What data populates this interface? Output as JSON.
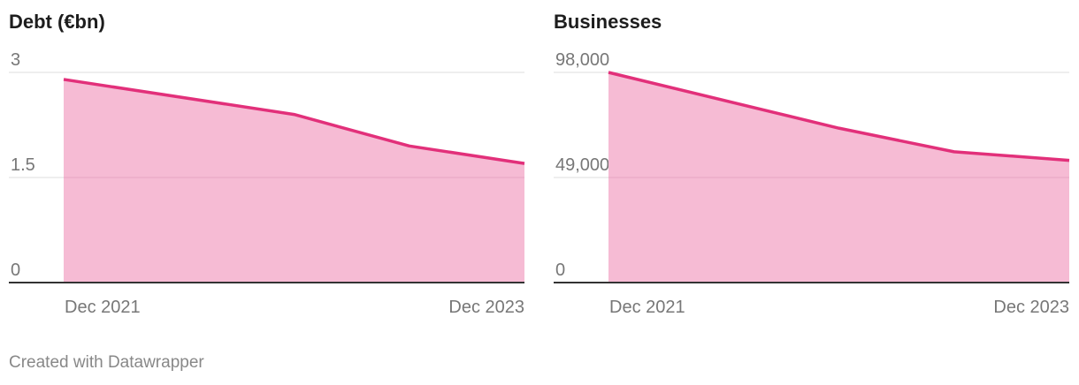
{
  "footer": {
    "credit": "Created with Datawrapper"
  },
  "colors": {
    "line": "#e2307a",
    "area": "#f6bbd4",
    "grid": "#dedede",
    "baseline": "#333333",
    "tick_text": "#777777"
  },
  "chart_data": [
    {
      "type": "area",
      "title": "Debt (€bn)",
      "x_labels": [
        "Dec 2021",
        "Dec 2023"
      ],
      "x": [
        "Dec 2021",
        "Dec 2022",
        "Jun 2023",
        "Dec 2023"
      ],
      "series": [
        {
          "values": [
            2.9,
            2.4,
            1.95,
            1.7
          ]
        }
      ],
      "ylim": [
        0,
        3
      ],
      "yticks": [
        0,
        1.5,
        3
      ],
      "ytick_labels": [
        "0",
        "1.5",
        "3"
      ],
      "grid": true
    },
    {
      "type": "area",
      "title": "Businesses",
      "x_labels": [
        "Dec 2021",
        "Dec 2023"
      ],
      "x": [
        "Dec 2021",
        "Dec 2022",
        "Jun 2023",
        "Dec 2023"
      ],
      "series": [
        {
          "values": [
            98000,
            72000,
            61000,
            57000
          ]
        }
      ],
      "ylim": [
        0,
        98000
      ],
      "yticks": [
        0,
        49000,
        98000
      ],
      "ytick_labels": [
        "0",
        "49,000",
        "98,000"
      ],
      "grid": true
    }
  ]
}
